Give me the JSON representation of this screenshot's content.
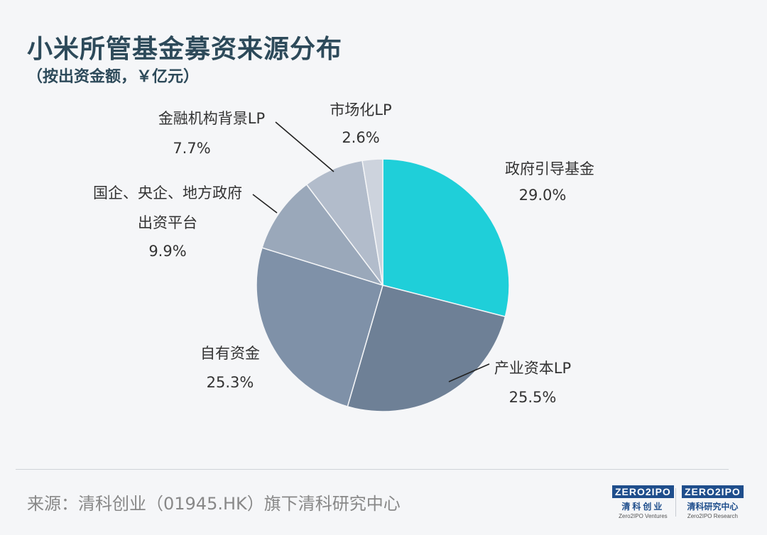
{
  "title": "小米所管基金募资来源分布",
  "subtitle": "（按出资金额，￥亿元）",
  "source": "来源：清科创业（01945.HK）旗下清科研究中心",
  "logos": {
    "left": {
      "mark": "ZERO2IPO",
      "cn": "清科创业",
      "en": "Zero2IPO Ventures"
    },
    "right": {
      "mark": "ZERO2IPO",
      "cn": "清科研究中心",
      "en": "Zero2IPO Research"
    }
  },
  "chart_data": {
    "type": "pie",
    "slices": [
      {
        "label": "政府引导基金",
        "value": 29.0,
        "display": "29.0%",
        "color": "#1fcfd9"
      },
      {
        "label": "产业资本LP",
        "value": 25.5,
        "display": "25.5%",
        "color": "#6e8096"
      },
      {
        "label": "自有资金",
        "value": 25.3,
        "display": "25.3%",
        "color": "#7f91a8"
      },
      {
        "label": "国企、央企、地方政府出资平台",
        "value": 9.9,
        "display": "9.9%",
        "color": "#9aa8ba"
      },
      {
        "label": "金融机构背景LP",
        "value": 7.7,
        "display": "7.7%",
        "color": "#b2bccb"
      },
      {
        "label": "市场化LP",
        "value": 2.6,
        "display": "2.6%",
        "color": "#cdd3dd"
      }
    ],
    "start": "12 o'clock",
    "direction": "clockwise"
  }
}
